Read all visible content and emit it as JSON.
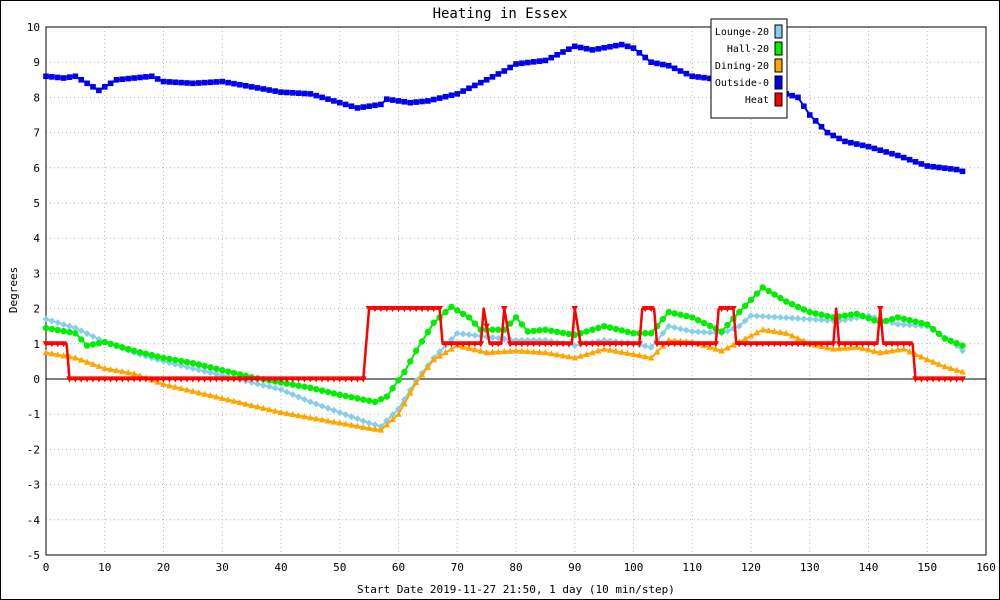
{
  "chart_data": {
    "type": "line",
    "title": "Heating in Essex",
    "xlabel": "Start Date 2019-11-27 21:50, 1 day (10 min/step)",
    "ylabel": "Degrees",
    "xlim": [
      0,
      160
    ],
    "ylim": [
      -5,
      10
    ],
    "xticks": [
      0,
      10,
      20,
      30,
      40,
      50,
      60,
      70,
      80,
      90,
      100,
      110,
      120,
      130,
      140,
      150,
      160
    ],
    "yticks": [
      -5,
      -4,
      -3,
      -2,
      -1,
      0,
      1,
      2,
      3,
      4,
      5,
      6,
      7,
      8,
      9,
      10
    ],
    "grid": true,
    "legend_position": "top-right",
    "series": [
      {
        "name": "Lounge-20",
        "color": "#87ceeb",
        "marker": "diamond",
        "points": [
          [
            0,
            1.7
          ],
          [
            5,
            1.45
          ],
          [
            10,
            1.05
          ],
          [
            15,
            0.75
          ],
          [
            20,
            0.5
          ],
          [
            25,
            0.3
          ],
          [
            30,
            0.1
          ],
          [
            35,
            -0.1
          ],
          [
            40,
            -0.3
          ],
          [
            45,
            -0.65
          ],
          [
            50,
            -0.95
          ],
          [
            55,
            -1.25
          ],
          [
            57,
            -1.35
          ],
          [
            60,
            -0.85
          ],
          [
            63,
            -0.05
          ],
          [
            66,
            0.6
          ],
          [
            70,
            1.3
          ],
          [
            75,
            1.2
          ],
          [
            80,
            1.1
          ],
          [
            85,
            1.1
          ],
          [
            90,
            0.95
          ],
          [
            95,
            1.1
          ],
          [
            100,
            1.0
          ],
          [
            103,
            0.9
          ],
          [
            106,
            1.5
          ],
          [
            110,
            1.35
          ],
          [
            115,
            1.3
          ],
          [
            118,
            1.5
          ],
          [
            120,
            1.8
          ],
          [
            125,
            1.75
          ],
          [
            130,
            1.7
          ],
          [
            135,
            1.65
          ],
          [
            140,
            1.8
          ],
          [
            145,
            1.55
          ],
          [
            150,
            1.5
          ],
          [
            155,
            0.95
          ],
          [
            156,
            0.8
          ]
        ]
      },
      {
        "name": "Hall-20",
        "color": "#00ee00",
        "marker": "circle",
        "points": [
          [
            0,
            1.45
          ],
          [
            5,
            1.3
          ],
          [
            7,
            0.95
          ],
          [
            10,
            1.05
          ],
          [
            15,
            0.8
          ],
          [
            20,
            0.6
          ],
          [
            25,
            0.45
          ],
          [
            30,
            0.25
          ],
          [
            35,
            0.05
          ],
          [
            40,
            -0.1
          ],
          [
            45,
            -0.25
          ],
          [
            50,
            -0.45
          ],
          [
            53,
            -0.55
          ],
          [
            56,
            -0.65
          ],
          [
            58,
            -0.5
          ],
          [
            61,
            0.2
          ],
          [
            63,
            0.8
          ],
          [
            66,
            1.6
          ],
          [
            69,
            2.05
          ],
          [
            72,
            1.75
          ],
          [
            74,
            1.4
          ],
          [
            78,
            1.4
          ],
          [
            80,
            1.75
          ],
          [
            82,
            1.35
          ],
          [
            85,
            1.4
          ],
          [
            90,
            1.25
          ],
          [
            95,
            1.5
          ],
          [
            100,
            1.3
          ],
          [
            103,
            1.3
          ],
          [
            106,
            1.9
          ],
          [
            110,
            1.75
          ],
          [
            115,
            1.35
          ],
          [
            118,
            1.9
          ],
          [
            122,
            2.6
          ],
          [
            126,
            2.2
          ],
          [
            130,
            1.9
          ],
          [
            134,
            1.75
          ],
          [
            138,
            1.85
          ],
          [
            142,
            1.6
          ],
          [
            145,
            1.75
          ],
          [
            150,
            1.55
          ],
          [
            153,
            1.15
          ],
          [
            156,
            0.95
          ]
        ]
      },
      {
        "name": "Dining-20",
        "color": "#ffa500",
        "marker": "triangle",
        "points": [
          [
            0,
            0.75
          ],
          [
            5,
            0.6
          ],
          [
            10,
            0.3
          ],
          [
            15,
            0.15
          ],
          [
            20,
            -0.15
          ],
          [
            25,
            -0.35
          ],
          [
            30,
            -0.55
          ],
          [
            35,
            -0.75
          ],
          [
            40,
            -0.95
          ],
          [
            45,
            -1.1
          ],
          [
            50,
            -1.25
          ],
          [
            55,
            -1.4
          ],
          [
            57,
            -1.45
          ],
          [
            60,
            -1.0
          ],
          [
            63,
            -0.1
          ],
          [
            66,
            0.55
          ],
          [
            70,
            0.95
          ],
          [
            75,
            0.75
          ],
          [
            80,
            0.8
          ],
          [
            85,
            0.75
          ],
          [
            90,
            0.6
          ],
          [
            95,
            0.85
          ],
          [
            100,
            0.7
          ],
          [
            103,
            0.6
          ],
          [
            106,
            1.1
          ],
          [
            110,
            1.05
          ],
          [
            115,
            0.8
          ],
          [
            118,
            1.05
          ],
          [
            122,
            1.4
          ],
          [
            126,
            1.3
          ],
          [
            130,
            1.0
          ],
          [
            134,
            0.85
          ],
          [
            138,
            0.9
          ],
          [
            142,
            0.75
          ],
          [
            146,
            0.85
          ],
          [
            150,
            0.55
          ],
          [
            153,
            0.35
          ],
          [
            156,
            0.2
          ]
        ]
      },
      {
        "name": "Outside-0",
        "color": "#0000ee",
        "marker": "square",
        "points": [
          [
            0,
            8.6
          ],
          [
            3,
            8.55
          ],
          [
            5,
            8.6
          ],
          [
            7,
            8.4
          ],
          [
            9,
            8.2
          ],
          [
            12,
            8.5
          ],
          [
            15,
            8.55
          ],
          [
            18,
            8.6
          ],
          [
            20,
            8.45
          ],
          [
            25,
            8.4
          ],
          [
            30,
            8.45
          ],
          [
            35,
            8.3
          ],
          [
            40,
            8.15
          ],
          [
            45,
            8.1
          ],
          [
            50,
            7.85
          ],
          [
            53,
            7.7
          ],
          [
            57,
            7.8
          ],
          [
            58,
            7.95
          ],
          [
            62,
            7.85
          ],
          [
            65,
            7.9
          ],
          [
            70,
            8.1
          ],
          [
            75,
            8.5
          ],
          [
            78,
            8.75
          ],
          [
            80,
            8.95
          ],
          [
            85,
            9.05
          ],
          [
            90,
            9.45
          ],
          [
            93,
            9.35
          ],
          [
            98,
            9.5
          ],
          [
            100,
            9.4
          ],
          [
            103,
            9.0
          ],
          [
            106,
            8.9
          ],
          [
            110,
            8.6
          ],
          [
            115,
            8.5
          ],
          [
            118,
            8.5
          ],
          [
            124,
            8.2
          ],
          [
            128,
            8.0
          ],
          [
            130,
            7.5
          ],
          [
            133,
            7.0
          ],
          [
            136,
            6.75
          ],
          [
            140,
            6.6
          ],
          [
            145,
            6.35
          ],
          [
            150,
            6.05
          ],
          [
            155,
            5.95
          ],
          [
            156,
            5.9
          ]
        ]
      },
      {
        "name": "Heat",
        "color": "#ff0000",
        "marker": "triangle-down",
        "points": [
          [
            0,
            1
          ],
          [
            3.5,
            1
          ],
          [
            4,
            0
          ],
          [
            54,
            0
          ],
          [
            55,
            2
          ],
          [
            67,
            2
          ],
          [
            67.5,
            1
          ],
          [
            74,
            1
          ],
          [
            74.5,
            2
          ],
          [
            75.5,
            1
          ],
          [
            77.5,
            1
          ],
          [
            78,
            2
          ],
          [
            79,
            1
          ],
          [
            89.5,
            1
          ],
          [
            90,
            2
          ],
          [
            91,
            1
          ],
          [
            101,
            1
          ],
          [
            101.5,
            2
          ],
          [
            103.5,
            2
          ],
          [
            104,
            1
          ],
          [
            114,
            1
          ],
          [
            114.5,
            2
          ],
          [
            117,
            2
          ],
          [
            117.5,
            1
          ],
          [
            134,
            1
          ],
          [
            134.5,
            2
          ],
          [
            135,
            1
          ],
          [
            141.5,
            1
          ],
          [
            142,
            2
          ],
          [
            142.5,
            1
          ],
          [
            147.5,
            1
          ],
          [
            148,
            0
          ],
          [
            156,
            0
          ]
        ]
      }
    ]
  }
}
